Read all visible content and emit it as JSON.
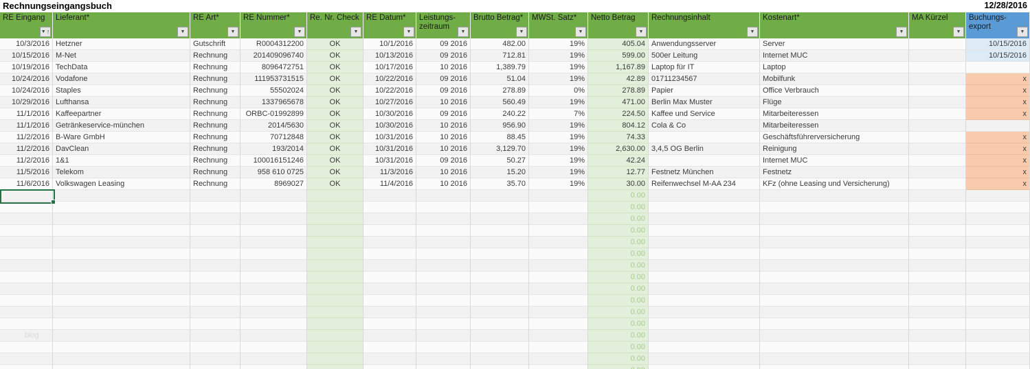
{
  "title": "Rechnungseingangsbuch",
  "date": "12/28/2016",
  "watermark": "blog",
  "icons": {
    "filter": "▼",
    "sort_asc": "↑"
  },
  "colors": {
    "header_green": "#70ad47",
    "header_blue": "#5b9bd5",
    "cell_light_green": "#e2efda",
    "cell_light_blue": "#ddebf7",
    "cell_orange": "#f8cbad",
    "selection_green": "#217346",
    "zero_value_text": "#a7cb8d"
  },
  "table": {
    "columns": [
      {
        "id": "re_eingang",
        "label": "RE Eingang",
        "label2": "",
        "sorted": true,
        "header_style": "green"
      },
      {
        "id": "lieferant",
        "label": "Lieferant*",
        "label2": "",
        "sorted": false,
        "header_style": "green"
      },
      {
        "id": "re_art",
        "label": "RE Art*",
        "label2": "",
        "sorted": false,
        "header_style": "green"
      },
      {
        "id": "re_nummer",
        "label": "RE Nummer*",
        "label2": "",
        "sorted": false,
        "header_style": "green"
      },
      {
        "id": "check",
        "label": "Re. Nr. Check",
        "label2": "",
        "sorted": false,
        "header_style": "green"
      },
      {
        "id": "re_datum",
        "label": "RE Datum*",
        "label2": "",
        "sorted": false,
        "header_style": "green"
      },
      {
        "id": "zeitraum",
        "label": "Leistungs-",
        "label2": "zeitraum",
        "sorted": false,
        "header_style": "green"
      },
      {
        "id": "brutto",
        "label": "Brutto Betrag*",
        "label2": "",
        "sorted": false,
        "header_style": "green"
      },
      {
        "id": "mwst",
        "label": "MWSt. Satz*",
        "label2": "",
        "sorted": false,
        "header_style": "green"
      },
      {
        "id": "netto",
        "label": "Netto Betrag",
        "label2": "",
        "sorted": false,
        "header_style": "green"
      },
      {
        "id": "inhalt",
        "label": "Rechnungsinhalt",
        "label2": "",
        "sorted": false,
        "header_style": "green"
      },
      {
        "id": "kostenart",
        "label": "Kostenart*",
        "label2": "",
        "sorted": false,
        "header_style": "green"
      },
      {
        "id": "ma_kuerzel",
        "label": "MA Kürzel",
        "label2": "",
        "sorted": false,
        "header_style": "green"
      },
      {
        "id": "export",
        "label": "Buchungs-",
        "label2": "export",
        "sorted": false,
        "header_style": "blue"
      }
    ],
    "rows": [
      [
        "10/3/2016",
        "Hetzner",
        "Gutschrift",
        "R0004312200",
        "OK",
        "10/1/2016",
        "09 2016",
        "482.00",
        "19%",
        "405.04",
        "Anwendungsserver",
        "Server",
        "",
        "10/15/2016"
      ],
      [
        "10/15/2016",
        "M-Net",
        "Rechnung",
        "201409096740",
        "OK",
        "10/13/2016",
        "09 2016",
        "712.81",
        "19%",
        "599.00",
        "500er Leitung",
        "Internet MUC",
        "",
        "10/15/2016"
      ],
      [
        "10/19/2016",
        "TechData",
        "Rechnung",
        "8096472751",
        "OK",
        "10/17/2016",
        "10 2016",
        "1,389.79",
        "19%",
        "1,167.89",
        "Laptop für IT",
        "Laptop",
        "",
        ""
      ],
      [
        "10/24/2016",
        "Vodafone",
        "Rechnung",
        "111953731515",
        "OK",
        "10/22/2016",
        "09 2016",
        "51.04",
        "19%",
        "42.89",
        "01711234567",
        "Mobilfunk",
        "",
        "x"
      ],
      [
        "10/24/2016",
        "Staples",
        "Rechnung",
        "55502024",
        "OK",
        "10/22/2016",
        "09 2016",
        "278.89",
        "0%",
        "278.89",
        "Papier",
        "Office Verbrauch",
        "",
        "x"
      ],
      [
        "10/29/2016",
        "Lufthansa",
        "Rechnung",
        "1337965678",
        "OK",
        "10/27/2016",
        "10 2016",
        "560.49",
        "19%",
        "471.00",
        "Berlin Max Muster",
        "Flüge",
        "",
        "x"
      ],
      [
        "11/1/2016",
        "Kaffeepartner",
        "Rechnung",
        "ORBC-01992899",
        "OK",
        "10/30/2016",
        "09 2016",
        "240.22",
        "7%",
        "224.50",
        "Kaffee und Service",
        "Mitarbeiteressen",
        "",
        "x"
      ],
      [
        "11/1/2016",
        "Getränkeservice-münchen",
        "Rechnung",
        "2014/5630",
        "OK",
        "10/30/2016",
        "10 2016",
        "956.90",
        "19%",
        "804.12",
        "Cola & Co",
        "Mitarbeiteressen",
        "",
        ""
      ],
      [
        "11/2/2016",
        "B-Ware GmbH",
        "Rechnung",
        "70712848",
        "OK",
        "10/31/2016",
        "10 2016",
        "88.45",
        "19%",
        "74.33",
        "",
        "Geschäftsführerversicherung",
        "",
        "x"
      ],
      [
        "11/2/2016",
        "DavClean",
        "Rechnung",
        "193/2014",
        "OK",
        "10/31/2016",
        "10 2016",
        "3,129.70",
        "19%",
        "2,630.00",
        "3,4,5 OG Berlin",
        "Reinigung",
        "",
        "x"
      ],
      [
        "11/2/2016",
        "1&1",
        "Rechnung",
        "100016151246",
        "OK",
        "10/31/2016",
        "09 2016",
        "50.27",
        "19%",
        "42.24",
        "",
        "Internet MUC",
        "",
        "x"
      ],
      [
        "11/5/2016",
        "Telekom",
        "Rechnung",
        "958 610 0725",
        "OK",
        "11/3/2016",
        "10 2016",
        "15.20",
        "19%",
        "12.77",
        "Festnetz München",
        "Festnetz",
        "",
        "x"
      ],
      [
        "11/6/2016",
        "Volkswagen Leasing",
        "Rechnung",
        "8969027",
        "OK",
        "11/4/2016",
        "10 2016",
        "35.70",
        "19%",
        "30.00",
        "Reifenwechsel M-AA 234",
        "KFz (ohne Leasing und Versicherung)",
        "",
        "x"
      ]
    ],
    "empty_row_netto_value": "0.00",
    "empty_row_count": 16
  }
}
